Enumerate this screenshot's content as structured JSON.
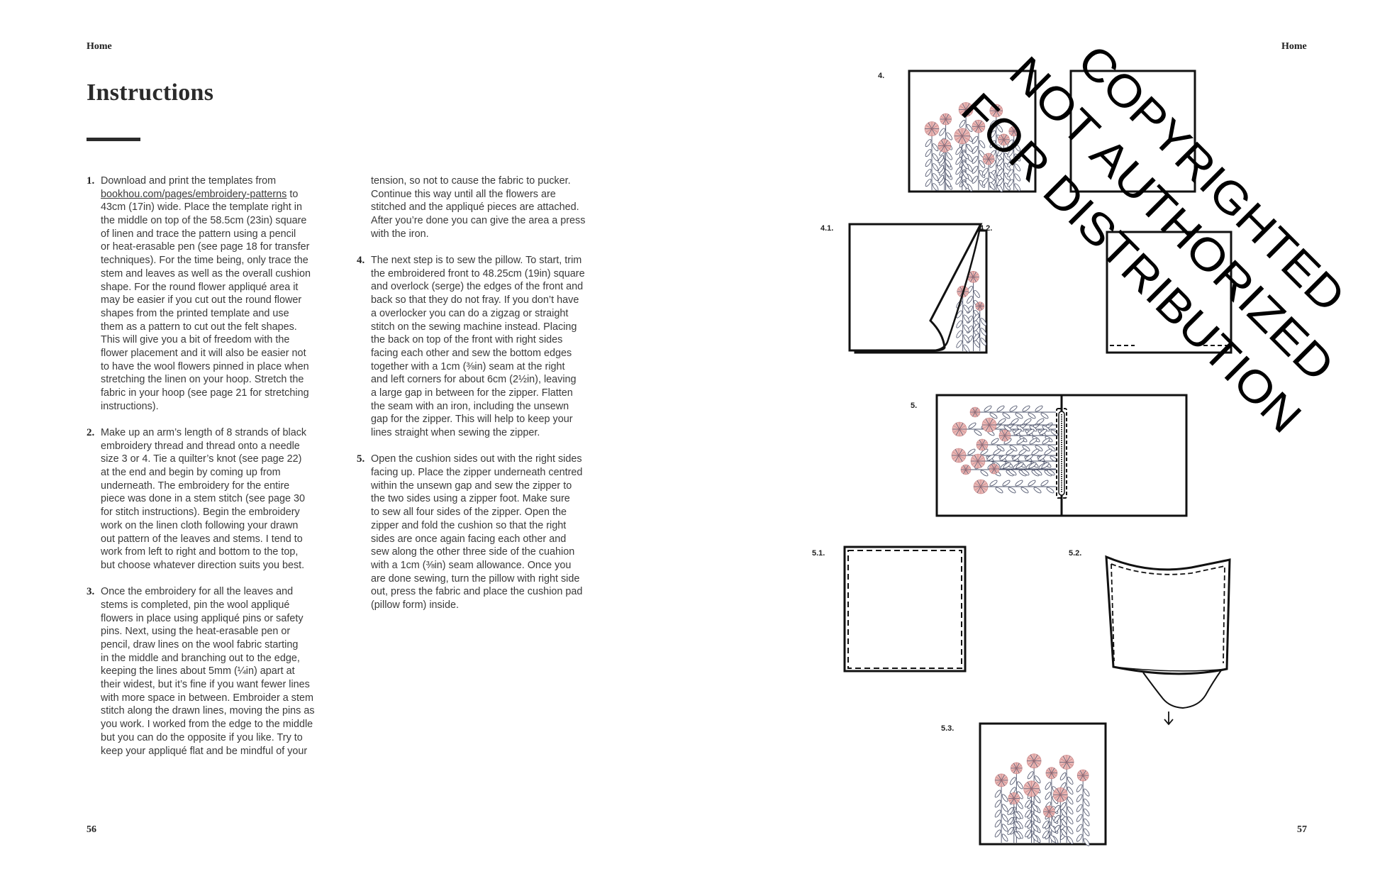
{
  "header": {
    "left_running_head": "Home",
    "right_running_head": "Home"
  },
  "title": "Instructions",
  "columns": [
    [
      {
        "number": "1.",
        "lines": [
          "Download and print the templates from",
          {
            "link": "bookhou.com/pages/embroidery-patterns",
            "text": " to"
          },
          "43cm (17in) wide. Place the template right in",
          "the middle on top of the 58.5cm (23in) square",
          "of linen and trace the pattern using a pencil",
          "or heat-erasable pen (see page 18 for transfer",
          "techniques). For the time being, only trace the",
          "stem and leaves as well as the overall cushion",
          "shape. For the round flower appliqué area it",
          "may be easier if you cut out the round flower",
          "shapes from the printed template and use",
          "them as a pattern to cut out the felt shapes.",
          "This will give you a bit of freedom with the",
          "flower placement and it will also be easier not",
          "to have the wool flowers pinned in place when",
          "stretching the linen on your hoop. Stretch the",
          "fabric in your hoop (see page 21 for stretching",
          "instructions)."
        ]
      },
      {
        "number": "2.",
        "lines": [
          "Make up an arm’s length of 8 strands of black",
          "embroidery thread and thread onto a needle",
          "size 3 or 4. Tie a quilter’s knot (see page 22)",
          "at the end and begin by coming up from",
          "underneath. The embroidery for the entire",
          "piece was done in a stem stitch (see page 30",
          "for stitch instructions). Begin the embroidery",
          "work on the linen cloth following your drawn",
          "out pattern of the leaves and stems. I tend to",
          "work from left to right and bottom to the top,",
          "but choose whatever direction suits you best."
        ]
      },
      {
        "number": "3.",
        "lines": [
          "Once the embroidery for all the leaves and",
          "stems is completed, pin the wool appliqué",
          "flowers in place using appliqué pins or safety",
          "pins. Next, using the heat-erasable pen or",
          "pencil, draw lines on the wool fabric starting",
          "in the middle and branching out to the edge,",
          "keeping the lines about 5mm (¼in) apart at",
          "their widest, but it’s fine if you want fewer lines",
          "with more space in between. Embroider a stem",
          "stitch along the drawn lines, moving the pins as",
          "you work. I worked from the edge to the middle",
          "but you can do the opposite if you like. Try to",
          "keep your appliqué flat and be mindful of your"
        ]
      }
    ],
    [
      {
        "number": "",
        "lines": [
          "tension, so not to cause the fabric to pucker.",
          "Continue this way until all the flowers are",
          "stitched and the appliqué pieces are attached.",
          "After you’re done you can give the area a press",
          "with the iron."
        ]
      },
      {
        "number": "4.",
        "lines": [
          "The next step is to sew the pillow. To start, trim",
          "the embroidered front to 48.25cm (19in) square",
          "and overlock (serge) the edges of the front and",
          "back so that they do not fray. If you don’t have",
          "a overlocker you can do a zigzag or straight",
          "stitch on the sewing machine instead. Placing",
          "the back on top of the front with right sides",
          "facing each other and sew the bottom edges",
          "together with a 1cm (⅜in) seam at the right",
          "and left corners for about 6cm (2½in), leaving",
          "a large gap in between for the zipper. Flatten",
          "the seam with an iron, including the unsewn",
          "gap for the zipper. This will help to keep your",
          "lines straight when sewing the zipper."
        ]
      },
      {
        "number": "5.",
        "lines": [
          "Open the cushion sides out with the right sides",
          "facing up. Place the zipper underneath centred",
          "within the unsewn gap and sew the zipper to",
          "the two sides using a zipper foot. Make sure",
          "to sew all four sides of the zipper. Open the",
          "zipper and fold the cushion so that the right",
          "sides are once again facing each other and",
          "sew along the other three side of the cuahion",
          "with a 1cm (⅜in) seam allowance. Once you",
          "are done sewing, turn the pillow with right side",
          "out, press the fabric and place the cushion pad",
          "(pillow form) inside."
        ]
      }
    ]
  ],
  "figures": {
    "labels": {
      "f4": "4.",
      "f41": "4.1.",
      "f42": "4.2.",
      "f5": "5.",
      "f51": "5.1.",
      "f52": "5.2.",
      "f53": "5.3."
    }
  },
  "watermark": {
    "lines": [
      "COPYRIGHTED",
      "NOT AUTHORIZED",
      "FOR DISTRIBUTION"
    ]
  },
  "folios": {
    "left": "56",
    "right": "57"
  },
  "colors": {
    "petal": "#e9b7b5",
    "petal_line": "#c77f80",
    "stem": "#4a5068",
    "ink": "#111111"
  }
}
